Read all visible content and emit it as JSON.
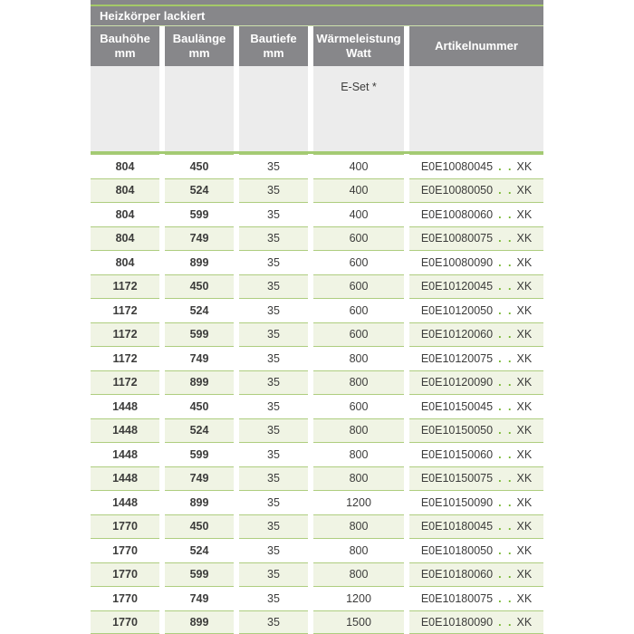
{
  "colors": {
    "header_gray": "#87878a",
    "accent_green": "#a4c968",
    "row_border_green": "#aecd7f",
    "alt_row_green": "#f0f4e4",
    "dots_green": "#74b62c",
    "subheader_gray": "#ececec",
    "text_dark": "#3c3c3b"
  },
  "table": {
    "title": "Heizkörper lackiert",
    "columns": [
      {
        "line1": "Bauhöhe",
        "line2": "mm"
      },
      {
        "line1": "Baulänge",
        "line2": "mm"
      },
      {
        "line1": "Bautiefe",
        "line2": "mm"
      },
      {
        "line1": "Wärmeleistung",
        "line2": "Watt"
      },
      {
        "line1": "Artikelnummer",
        "line2": ""
      }
    ],
    "subheader": {
      "eset_label": "E-Set *"
    },
    "article_dots": ". .",
    "rows": [
      {
        "bauhoehe": "804",
        "baulaenge": "450",
        "bautiefe": "35",
        "watt": "400",
        "artikel": "E0E10080045",
        "artikel_suffix": "XK"
      },
      {
        "bauhoehe": "804",
        "baulaenge": "524",
        "bautiefe": "35",
        "watt": "400",
        "artikel": "E0E10080050",
        "artikel_suffix": "XK"
      },
      {
        "bauhoehe": "804",
        "baulaenge": "599",
        "bautiefe": "35",
        "watt": "400",
        "artikel": "E0E10080060",
        "artikel_suffix": "XK"
      },
      {
        "bauhoehe": "804",
        "baulaenge": "749",
        "bautiefe": "35",
        "watt": "600",
        "artikel": "E0E10080075",
        "artikel_suffix": "XK"
      },
      {
        "bauhoehe": "804",
        "baulaenge": "899",
        "bautiefe": "35",
        "watt": "600",
        "artikel": "E0E10080090",
        "artikel_suffix": "XK"
      },
      {
        "bauhoehe": "1172",
        "baulaenge": "450",
        "bautiefe": "35",
        "watt": "600",
        "artikel": "E0E10120045",
        "artikel_suffix": "XK"
      },
      {
        "bauhoehe": "1172",
        "baulaenge": "524",
        "bautiefe": "35",
        "watt": "600",
        "artikel": "E0E10120050",
        "artikel_suffix": "XK"
      },
      {
        "bauhoehe": "1172",
        "baulaenge": "599",
        "bautiefe": "35",
        "watt": "600",
        "artikel": "E0E10120060",
        "artikel_suffix": "XK"
      },
      {
        "bauhoehe": "1172",
        "baulaenge": "749",
        "bautiefe": "35",
        "watt": "800",
        "artikel": "E0E10120075",
        "artikel_suffix": "XK"
      },
      {
        "bauhoehe": "1172",
        "baulaenge": "899",
        "bautiefe": "35",
        "watt": "800",
        "artikel": "E0E10120090",
        "artikel_suffix": "XK"
      },
      {
        "bauhoehe": "1448",
        "baulaenge": "450",
        "bautiefe": "35",
        "watt": "600",
        "artikel": "E0E10150045",
        "artikel_suffix": "XK"
      },
      {
        "bauhoehe": "1448",
        "baulaenge": "524",
        "bautiefe": "35",
        "watt": "800",
        "artikel": "E0E10150050",
        "artikel_suffix": "XK"
      },
      {
        "bauhoehe": "1448",
        "baulaenge": "599",
        "bautiefe": "35",
        "watt": "800",
        "artikel": "E0E10150060",
        "artikel_suffix": "XK"
      },
      {
        "bauhoehe": "1448",
        "baulaenge": "749",
        "bautiefe": "35",
        "watt": "800",
        "artikel": "E0E10150075",
        "artikel_suffix": "XK"
      },
      {
        "bauhoehe": "1448",
        "baulaenge": "899",
        "bautiefe": "35",
        "watt": "1200",
        "artikel": "E0E10150090",
        "artikel_suffix": "XK"
      },
      {
        "bauhoehe": "1770",
        "baulaenge": "450",
        "bautiefe": "35",
        "watt": "800",
        "artikel": "E0E10180045",
        "artikel_suffix": "XK"
      },
      {
        "bauhoehe": "1770",
        "baulaenge": "524",
        "bautiefe": "35",
        "watt": "800",
        "artikel": "E0E10180050",
        "artikel_suffix": "XK"
      },
      {
        "bauhoehe": "1770",
        "baulaenge": "599",
        "bautiefe": "35",
        "watt": "800",
        "artikel": "E0E10180060",
        "artikel_suffix": "XK"
      },
      {
        "bauhoehe": "1770",
        "baulaenge": "749",
        "bautiefe": "35",
        "watt": "1200",
        "artikel": "E0E10180075",
        "artikel_suffix": "XK"
      },
      {
        "bauhoehe": "1770",
        "baulaenge": "899",
        "bautiefe": "35",
        "watt": "1500",
        "artikel": "E0E10180090",
        "artikel_suffix": "XK"
      }
    ]
  }
}
